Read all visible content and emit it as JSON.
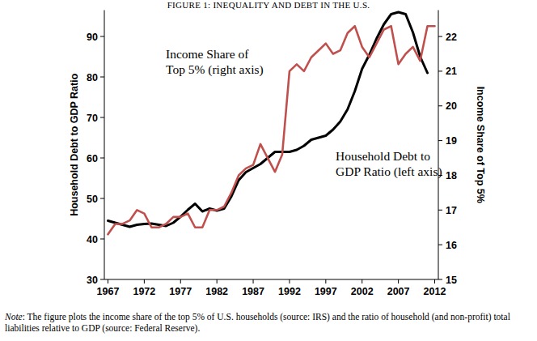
{
  "chart_data": {
    "type": "line",
    "title": "FIGURE 1: INEQUALITY AND DEBT IN THE U.S.",
    "y_label": "Household Debt to GDP Ratio",
    "y2_label": "Income Share of Top 5%",
    "annotations": [
      "Income Share of",
      "Top 5% (right axis)",
      "Household Debt to",
      "GDP Ratio (left axis)"
    ],
    "note_label": "Note",
    "note": ": The figure plots the income share of the top 5% of U.S. households (source: IRS) and the ratio of household (and non-profit) total liabilities relative to GDP (source: Federal Reserve).",
    "x": [
      1967,
      1968,
      1969,
      1970,
      1971,
      1972,
      1973,
      1974,
      1975,
      1976,
      1977,
      1978,
      1979,
      1980,
      1981,
      1982,
      1983,
      1984,
      1985,
      1986,
      1987,
      1988,
      1989,
      1990,
      1991,
      1992,
      1993,
      1994,
      1995,
      1996,
      1997,
      1998,
      1999,
      2000,
      2001,
      2002,
      2003,
      2004,
      2005,
      2006,
      2007,
      2008,
      2009,
      2010,
      2011,
      2012
    ],
    "series": [
      {
        "name": "Household Debt to GDP Ratio",
        "color": "#000000",
        "axis": "y",
        "values": [
          44.5,
          44,
          43.5,
          43,
          43.5,
          43.7,
          43.8,
          43.5,
          43.2,
          44,
          45.5,
          47.2,
          48.7,
          46.8,
          47.5,
          47,
          47.5,
          50.5,
          54.5,
          56.5,
          57.5,
          58.5,
          60,
          61.5,
          61.5,
          61.5,
          62,
          63,
          64.5,
          65,
          65.5,
          67,
          69,
          72,
          76.5,
          82,
          85.5,
          89.5,
          93,
          95.5,
          96,
          95.5,
          91,
          85,
          81,
          null
        ]
      },
      {
        "name": "Income Share of Top 5%",
        "color": "#c0504d",
        "axis": "y2",
        "values": [
          16.3,
          16.6,
          16.6,
          16.7,
          17.0,
          16.9,
          16.5,
          16.5,
          16.6,
          16.8,
          16.8,
          16.9,
          16.5,
          16.5,
          17.0,
          17.0,
          17.1,
          17.5,
          18.0,
          18.2,
          18.3,
          18.9,
          18.5,
          18.1,
          18.6,
          21.0,
          21.2,
          21.0,
          21.4,
          21.6,
          21.8,
          21.5,
          21.6,
          22.1,
          22.3,
          21.7,
          21.4,
          21.8,
          22.2,
          22.3,
          21.2,
          21.5,
          21.7,
          21.3,
          22.3,
          22.3
        ]
      }
    ],
    "xlim": [
      1966.5,
      2012.5
    ],
    "xticks": [
      1967,
      1972,
      1977,
      1982,
      1987,
      1992,
      1997,
      2002,
      2007,
      2012
    ],
    "ylim": [
      30,
      96.5
    ],
    "yticks": [
      30,
      40,
      50,
      60,
      70,
      80,
      90
    ],
    "y2lim": [
      15,
      22.76
    ],
    "y2ticks": [
      15,
      16,
      17,
      18,
      19,
      20,
      21,
      22
    ],
    "grid": false
  }
}
